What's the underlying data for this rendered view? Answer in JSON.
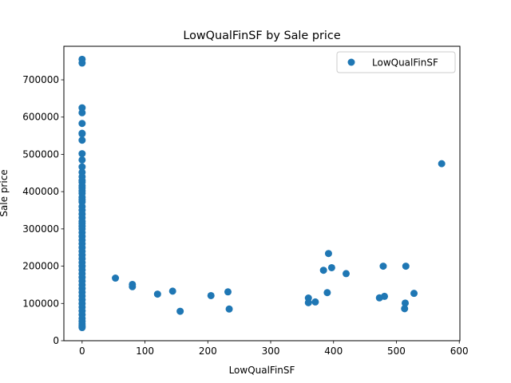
{
  "chart_data": {
    "type": "scatter",
    "title": "LowQualFinSF by Sale price",
    "xlabel": "LowQualFinSF",
    "ylabel": "Sale price",
    "xlim": [
      -29,
      601
    ],
    "ylim": [
      0,
      790000
    ],
    "xticks": [
      0,
      100,
      200,
      300,
      400,
      500,
      600
    ],
    "yticks": [
      0,
      100000,
      200000,
      300000,
      400000,
      500000,
      600000,
      700000
    ],
    "grid": false,
    "legend_position": "top-right",
    "color": "#1f77b4",
    "series": [
      {
        "name": "LowQualFinSF",
        "points": [
          [
            0,
            755000
          ],
          [
            0,
            745000
          ],
          [
            0,
            625000
          ],
          [
            0,
            611657
          ],
          [
            0,
            582933
          ],
          [
            0,
            556581
          ],
          [
            0,
            555000
          ],
          [
            0,
            538000
          ],
          [
            0,
            501837
          ],
          [
            0,
            485000
          ],
          [
            0,
            466500
          ],
          [
            0,
            451950
          ],
          [
            0,
            440000
          ],
          [
            0,
            430000
          ],
          [
            0,
            424870
          ],
          [
            0,
            415298
          ],
          [
            0,
            410000
          ],
          [
            0,
            402000
          ],
          [
            0,
            395000
          ],
          [
            0,
            385000
          ],
          [
            0,
            378500
          ],
          [
            0,
            372500
          ],
          [
            0,
            360000
          ],
          [
            0,
            350000
          ],
          [
            0,
            340000
          ],
          [
            0,
            330000
          ],
          [
            0,
            320000
          ],
          [
            0,
            315000
          ],
          [
            0,
            307000
          ],
          [
            0,
            300000
          ],
          [
            0,
            290000
          ],
          [
            0,
            280000
          ],
          [
            0,
            270000
          ],
          [
            0,
            260000
          ],
          [
            0,
            250000
          ],
          [
            0,
            240000
          ],
          [
            0,
            230000
          ],
          [
            0,
            220000
          ],
          [
            0,
            210000
          ],
          [
            0,
            200000
          ],
          [
            0,
            190000
          ],
          [
            0,
            180000
          ],
          [
            0,
            170000
          ],
          [
            0,
            160000
          ],
          [
            0,
            150000
          ],
          [
            0,
            140000
          ],
          [
            0,
            130000
          ],
          [
            0,
            120000
          ],
          [
            0,
            110000
          ],
          [
            0,
            100000
          ],
          [
            0,
            90000
          ],
          [
            0,
            80000
          ],
          [
            0,
            70000
          ],
          [
            0,
            60000
          ],
          [
            0,
            52000
          ],
          [
            0,
            45000
          ],
          [
            0,
            39300
          ],
          [
            0,
            35311
          ],
          [
            53,
            168000
          ],
          [
            80,
            151000
          ],
          [
            80,
            145000
          ],
          [
            120,
            125000
          ],
          [
            144,
            133000
          ],
          [
            156,
            79000
          ],
          [
            205,
            121000
          ],
          [
            232,
            131000
          ],
          [
            234,
            85000
          ],
          [
            360,
            114500
          ],
          [
            360,
            102000
          ],
          [
            371,
            104000
          ],
          [
            384,
            189000
          ],
          [
            390,
            129000
          ],
          [
            392,
            234000
          ],
          [
            397,
            196000
          ],
          [
            420,
            180000
          ],
          [
            473,
            115000
          ],
          [
            479,
            200000
          ],
          [
            481,
            119000
          ],
          [
            513,
            86000
          ],
          [
            514,
            101000
          ],
          [
            515,
            200000
          ],
          [
            528,
            127000
          ],
          [
            572,
            475000
          ]
        ]
      }
    ]
  }
}
